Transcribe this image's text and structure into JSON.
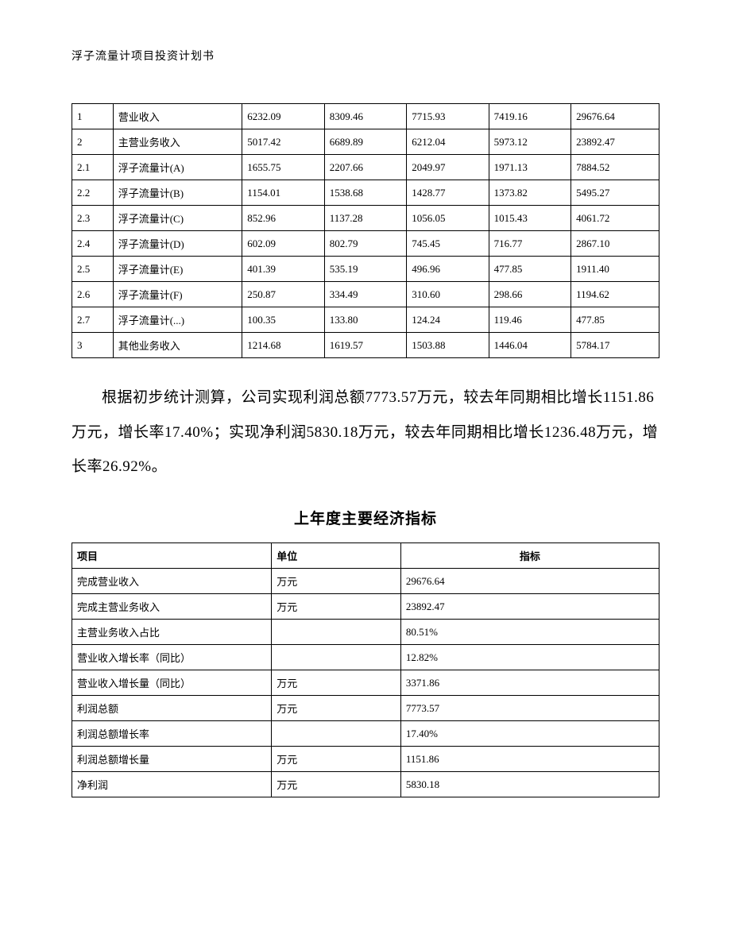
{
  "header": {
    "title": "浮子流量计项目投资计划书"
  },
  "table1": {
    "type": "table",
    "col_widths_pct": [
      7,
      22,
      14,
      14,
      14,
      14,
      15
    ],
    "border_color": "#000000",
    "font_size": 13,
    "rows": [
      [
        "1",
        "营业收入",
        "6232.09",
        "8309.46",
        "7715.93",
        "7419.16",
        "29676.64"
      ],
      [
        "2",
        "主营业务收入",
        "5017.42",
        "6689.89",
        "6212.04",
        "5973.12",
        "23892.47"
      ],
      [
        "2.1",
        "浮子流量计(A)",
        "1655.75",
        "2207.66",
        "2049.97",
        "1971.13",
        "7884.52"
      ],
      [
        "2.2",
        "浮子流量计(B)",
        "1154.01",
        "1538.68",
        "1428.77",
        "1373.82",
        "5495.27"
      ],
      [
        "2.3",
        "浮子流量计(C)",
        "852.96",
        "1137.28",
        "1056.05",
        "1015.43",
        "4061.72"
      ],
      [
        "2.4",
        "浮子流量计(D)",
        "602.09",
        "802.79",
        "745.45",
        "716.77",
        "2867.10"
      ],
      [
        "2.5",
        "浮子流量计(E)",
        "401.39",
        "535.19",
        "496.96",
        "477.85",
        "1911.40"
      ],
      [
        "2.6",
        "浮子流量计(F)",
        "250.87",
        "334.49",
        "310.60",
        "298.66",
        "1194.62"
      ],
      [
        "2.7",
        "浮子流量计(...)",
        "100.35",
        "133.80",
        "124.24",
        "119.46",
        "477.85"
      ],
      [
        "3",
        "其他业务收入",
        "1214.68",
        "1619.57",
        "1503.88",
        "1446.04",
        "5784.17"
      ]
    ]
  },
  "paragraph": {
    "text": "根据初步统计测算，公司实现利润总额7773.57万元，较去年同期相比增长1151.86万元，增长率17.40%；实现净利润5830.18万元，较去年同期相比增长1236.48万元，增长率26.92%。",
    "font_size": 19,
    "line_height": 2.3
  },
  "section_title": "上年度主要经济指标",
  "table2": {
    "type": "table",
    "col_widths_pct": [
      34,
      22,
      44
    ],
    "border_color": "#000000",
    "font_size": 13,
    "header": [
      "项目",
      "单位",
      "指标"
    ],
    "rows": [
      [
        "完成营业收入",
        "万元",
        "29676.64"
      ],
      [
        "完成主营业务收入",
        "万元",
        "23892.47"
      ],
      [
        "主营业务收入占比",
        "",
        "80.51%"
      ],
      [
        "营业收入增长率（同比）",
        "",
        "12.82%"
      ],
      [
        "营业收入增长量（同比）",
        "万元",
        "3371.86"
      ],
      [
        "利润总额",
        "万元",
        "7773.57"
      ],
      [
        "利润总额增长率",
        "",
        "17.40%"
      ],
      [
        "利润总额增长量",
        "万元",
        "1151.86"
      ],
      [
        "净利润",
        "万元",
        "5830.18"
      ]
    ]
  }
}
